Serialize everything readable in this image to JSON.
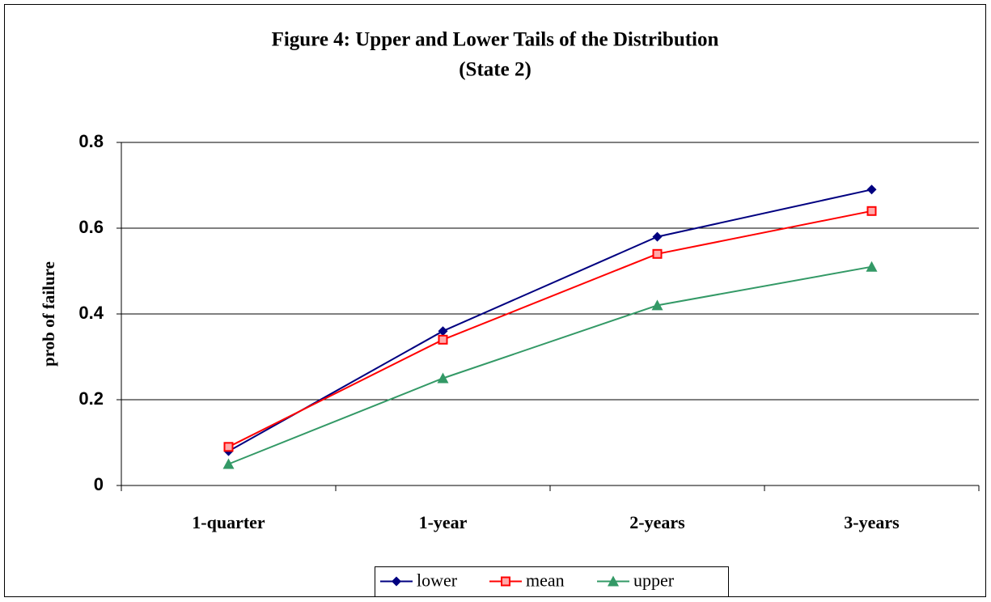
{
  "chart_data": {
    "type": "line",
    "title": "Figure 4:  Upper and Lower Tails of the Distribution",
    "subtitle": "(State 2)",
    "y_label": "prob of failure",
    "categories": [
      "1-quarter",
      "1-year",
      "2-years",
      "3-years"
    ],
    "series": [
      {
        "name": "lower",
        "color": "#000080",
        "marker": "diamond",
        "values": [
          0.08,
          0.36,
          0.58,
          0.69
        ]
      },
      {
        "name": "mean",
        "color": "#ff0000",
        "marker": "square",
        "values": [
          0.09,
          0.34,
          0.54,
          0.64
        ]
      },
      {
        "name": "upper",
        "color": "#339966",
        "marker": "triangle",
        "values": [
          0.05,
          0.25,
          0.42,
          0.51
        ]
      }
    ],
    "ylim": [
      0,
      0.8
    ],
    "yticks": [
      0,
      0.2,
      0.4,
      0.6,
      0.8
    ],
    "grid": true,
    "legend": "bottom"
  }
}
